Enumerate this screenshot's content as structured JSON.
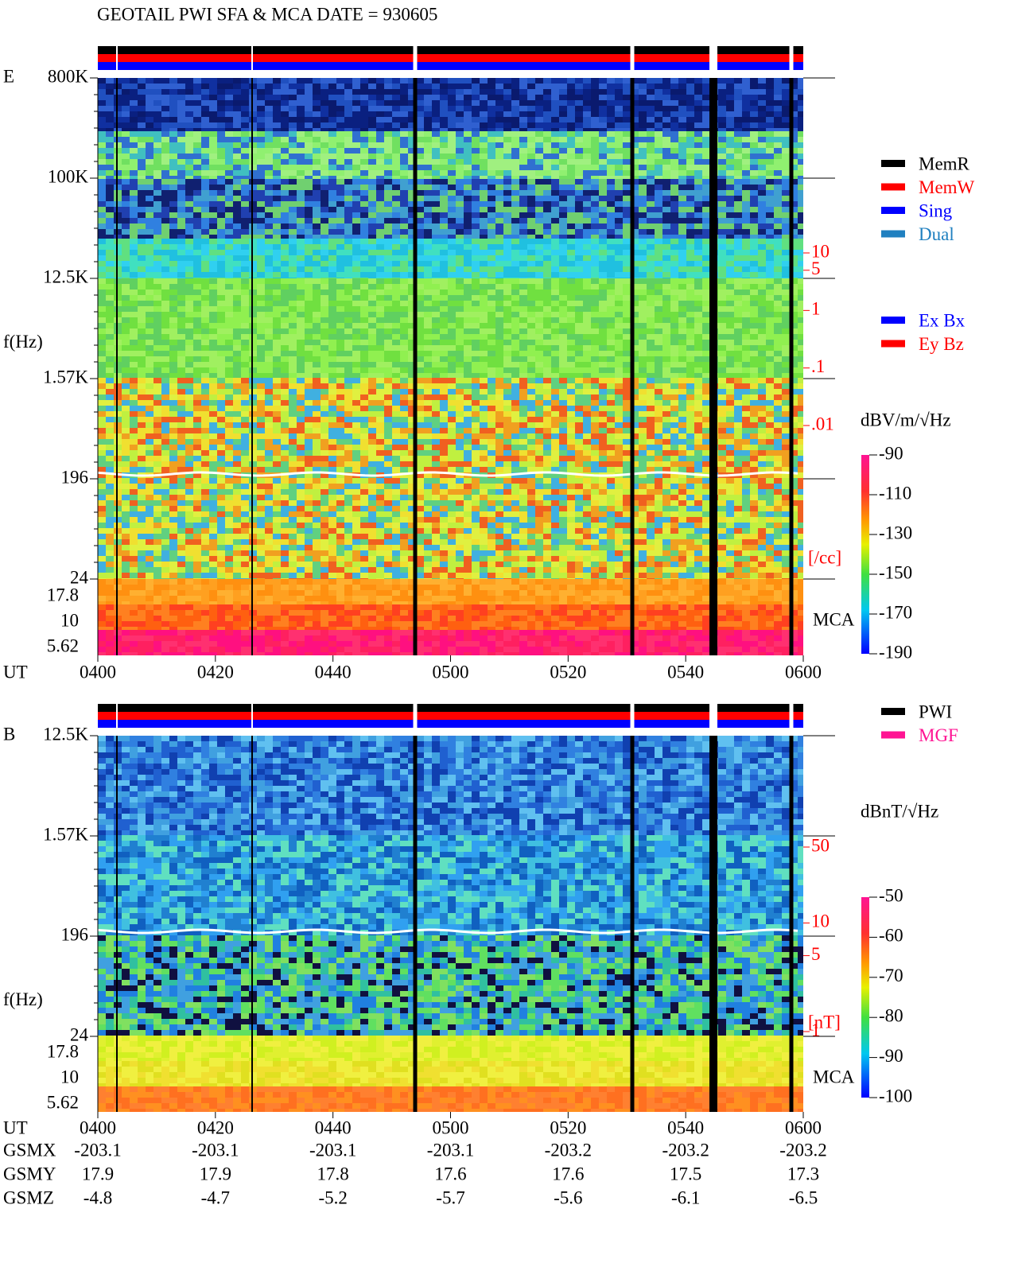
{
  "header": {
    "title": "GEOTAIL  PWI SFA & MCA   DATE = 930605"
  },
  "legend_mode": [
    {
      "name": "MemR",
      "color": "#000000"
    },
    {
      "name": "MemW",
      "color": "#ff0000"
    },
    {
      "name": "Sing",
      "color": "#0000ff"
    },
    {
      "name": "Dual",
      "color": "#2080c0"
    }
  ],
  "legend_component": [
    {
      "name": "Ex Bx",
      "color": "#0000ff"
    },
    {
      "name": "Ey Bz",
      "color": "#ff0000"
    }
  ],
  "legend_source": [
    {
      "name": "PWI",
      "color": "#000000"
    },
    {
      "name": "MGF",
      "color": "#ff1493"
    }
  ],
  "panels": [
    {
      "label": "E",
      "ylabel": "f(Hz)",
      "freq_ticks": [
        "800K",
        "100K",
        "12.5K",
        "1.57K",
        "196",
        "24"
      ],
      "mca_label": "MCA",
      "mca_ticks": [
        "17.8",
        "10",
        "5.62"
      ],
      "x_label": "UT",
      "x_ticks": [
        "0400",
        "0420",
        "0440",
        "0500",
        "0520",
        "0540",
        "0600"
      ],
      "colorbar": {
        "unit": "dBV/m/√Hz",
        "lim": [
          -190,
          -90
        ],
        "ticks": [
          -90,
          -110,
          -130,
          -150,
          -170,
          -190
        ]
      },
      "scale": {
        "unit": "[/cc]",
        "lim": [
          0.01,
          10
        ],
        "log": true,
        "ticks": [
          10,
          5,
          1,
          {
            "value": 0.1,
            "label": ".1"
          },
          {
            "value": 0.01,
            "label": ".01"
          }
        ]
      }
    },
    {
      "label": "B",
      "ylabel": "f(Hz)",
      "freq_ticks": [
        "12.5K",
        "1.57K",
        "196",
        "24"
      ],
      "mca_label": "MCA",
      "mca_ticks": [
        "17.8",
        "10",
        "5.62"
      ],
      "x_label": "UT",
      "x_ticks": [
        "0400",
        "0420",
        "0440",
        "0500",
        "0520",
        "0540",
        "0600"
      ],
      "colorbar": {
        "unit": "dBnT/√Hz",
        "lim": [
          -100,
          -50
        ],
        "ticks": [
          -50,
          -60,
          -70,
          -80,
          -90,
          -100
        ]
      },
      "scale": {
        "unit": "[nT]",
        "lim": [
          1,
          50
        ],
        "log": true,
        "ticks": [
          50,
          10,
          5,
          1
        ]
      }
    }
  ],
  "orbit": {
    "rows": [
      {
        "name": "GSMX",
        "values": [
          -203.1,
          -203.1,
          -203.1,
          -203.1,
          -203.2,
          -203.2,
          -203.2
        ]
      },
      {
        "name": "GSMY",
        "values": [
          17.9,
          17.9,
          17.8,
          17.6,
          17.6,
          17.5,
          17.3
        ]
      },
      {
        "name": "GSMZ",
        "values": [
          -4.8,
          -4.7,
          -5.2,
          -5.7,
          -5.6,
          -6.1,
          -6.5
        ]
      }
    ]
  }
}
